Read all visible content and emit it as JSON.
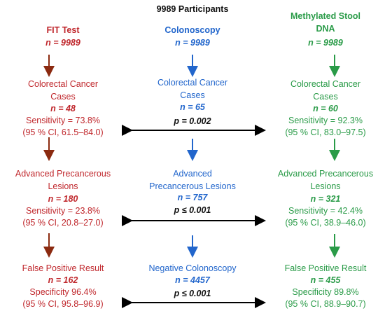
{
  "title": "9989 Participants",
  "colors": {
    "fit": "#c0282d",
    "colonoscopy": "#2266cc",
    "stool": "#2a9b48",
    "arrow_red": "#8b2a10",
    "arrow_blue": "#2266cc",
    "arrow_green": "#2a9b48",
    "compare": "#000000"
  },
  "fit": {
    "header": "FIT Test",
    "n": "n = 9989",
    "crc_line1": "Colorectal Cancer",
    "crc_line2": "Cases",
    "crc_n": "n = 48",
    "crc_sens": "Sensitivity = 73.8%",
    "crc_ci": "(95 % CI, 61.5–84.0)",
    "apl_line1": "Advanced Precancerous",
    "apl_line2": "Lesions",
    "apl_n": "n = 180",
    "apl_sens": "Sensitivity = 23.8%",
    "apl_ci": "(95 % CI, 20.8–27.0)",
    "fp_line1": "False Positive Result",
    "fp_n": "n = 162",
    "fp_spec": "Specificity 96.4%",
    "fp_ci": "(95 % CI, 95.8–96.9)"
  },
  "colonoscopy": {
    "header": "Colonoscopy",
    "n": "n = 9989",
    "crc_line1": "Colorectal Cancer",
    "crc_line2": "Cases",
    "crc_n": "n = 65",
    "crc_p": "p = 0.002",
    "apl_line1": "Advanced",
    "apl_line2": "Precancerous Lesions",
    "apl_n": "n = 757",
    "apl_p": "p ≤ 0.001",
    "neg_line1": "Negative Colonoscopy",
    "neg_n": "n = 4457",
    "neg_p": "p ≤ 0.001"
  },
  "stool": {
    "header_line1": "Methylated Stool",
    "header_line2": "DNA",
    "n": "n = 9989",
    "crc_line1": "Colorectal Cancer",
    "crc_line2": "Cases",
    "crc_n": "n = 60",
    "crc_sens": "Sensitivity = 92.3%",
    "crc_ci": "(95 % CI, 83.0–97.5)",
    "apl_line1": "Advanced Precancerous",
    "apl_line2": "Lesions",
    "apl_n": "n = 321",
    "apl_sens": "Sensitivity = 42.4%",
    "apl_ci": "(95 % CI, 38.9–46.0)",
    "fp_line1": "False Positive Result",
    "fp_n": "n = 455",
    "fp_spec": "Specificity 89.8%",
    "fp_ci": "(95 % CI, 88.9–90.7)"
  }
}
